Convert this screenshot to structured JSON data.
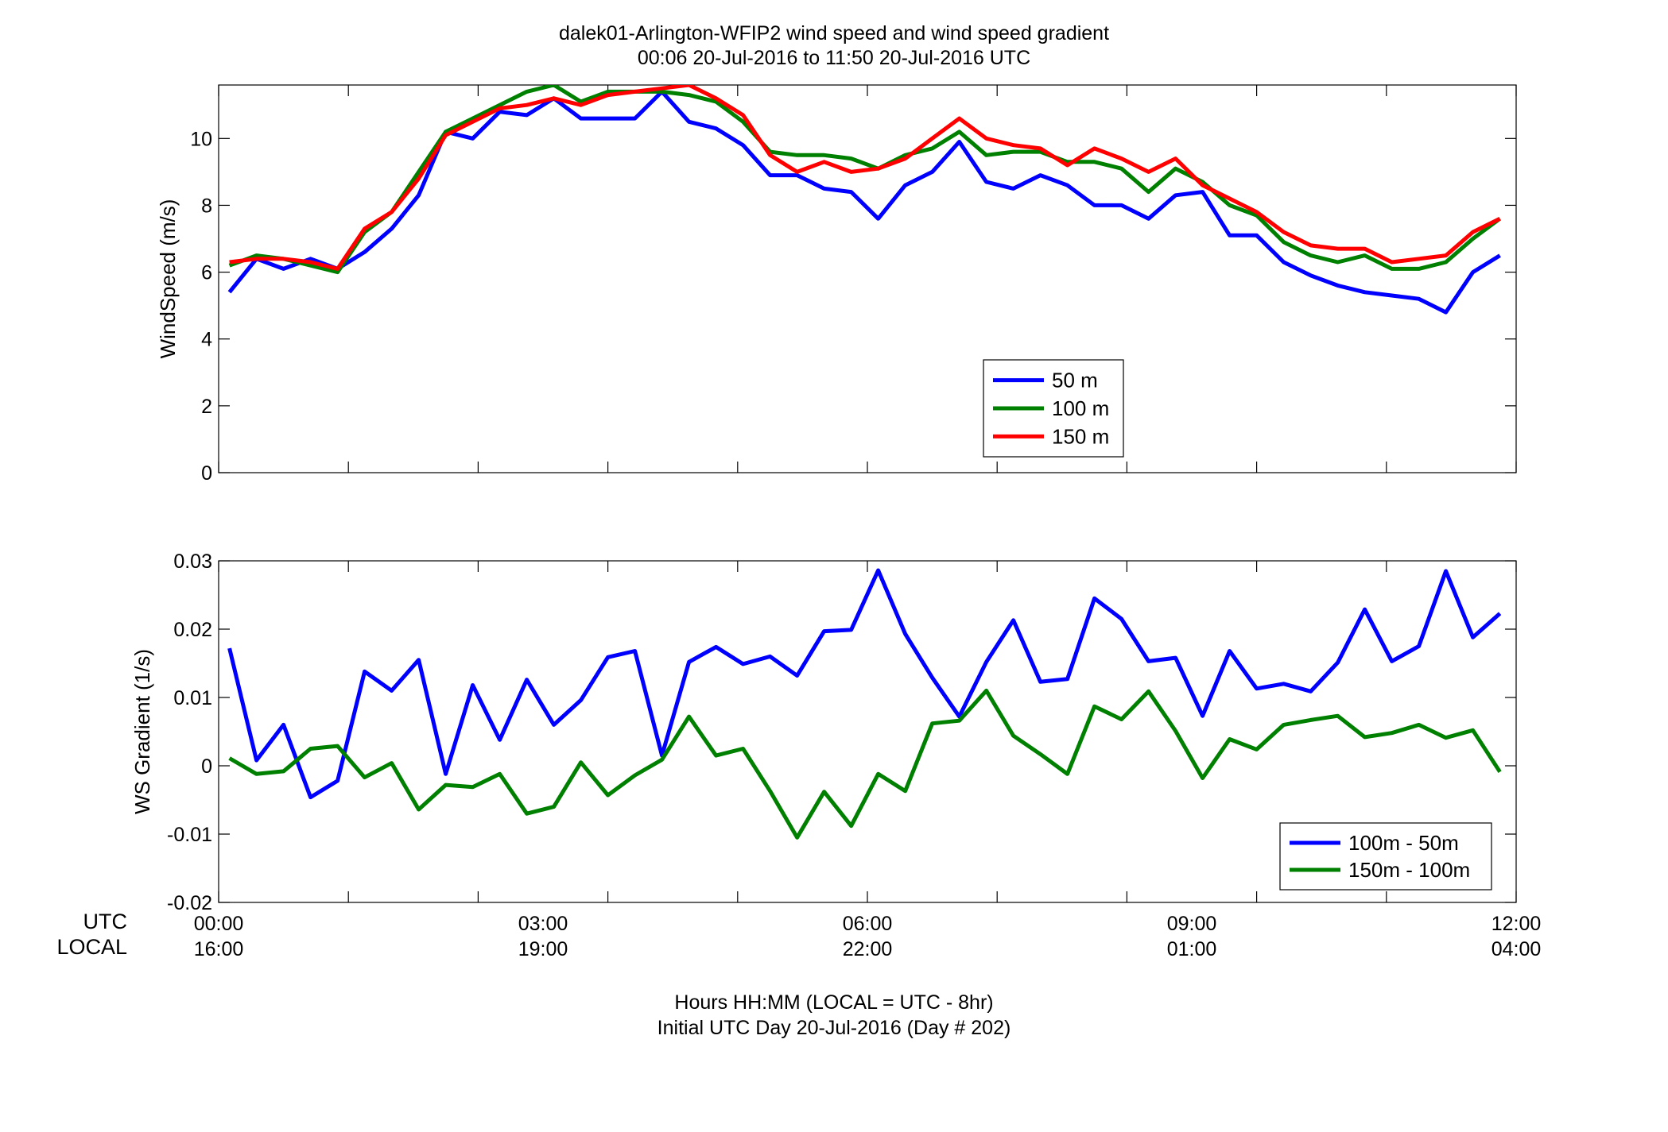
{
  "title": {
    "line1": "dalek01-Arlington-WFIP2  wind speed and wind speed gradient",
    "line2": "00:06 20-Jul-2016 to 11:50 20-Jul-2016  UTC"
  },
  "xaxis": {
    "row_label_utc": "UTC",
    "row_label_local": "LOCAL",
    "utc_ticks": [
      "00:00",
      "03:00",
      "06:00",
      "09:00",
      "12:00"
    ],
    "local_ticks": [
      "16:00",
      "19:00",
      "22:00",
      "01:00",
      "04:00"
    ],
    "label_line1": "Hours HH:MM  (LOCAL = UTC - 8hr)",
    "label_line2": "Initial UTC Day 20-Jul-2016 (Day # 202)"
  },
  "colors": {
    "blue": "#0000ff",
    "green": "#008000",
    "red": "#ff0000"
  },
  "chart_data": [
    {
      "type": "line",
      "ylabel": "WindSpeed (m/s)",
      "xlim": [
        0,
        12
      ],
      "ylim": [
        0,
        11.6
      ],
      "yticks": [
        0,
        2,
        4,
        6,
        8,
        10
      ],
      "x_minor_ticks": [
        0,
        1.2,
        2.4,
        3.6,
        4.8,
        6,
        7.2,
        8.4,
        9.6,
        10.8,
        12
      ],
      "legend_position": "lower-right",
      "x": [
        0.1,
        0.35,
        0.6,
        0.85,
        1.1,
        1.35,
        1.6,
        1.85,
        2.1,
        2.35,
        2.6,
        2.85,
        3.1,
        3.35,
        3.6,
        3.85,
        4.1,
        4.35,
        4.6,
        4.85,
        5.1,
        5.35,
        5.6,
        5.85,
        6.1,
        6.35,
        6.6,
        6.85,
        7.1,
        7.35,
        7.6,
        7.85,
        8.1,
        8.35,
        8.6,
        8.85,
        9.1,
        9.35,
        9.6,
        9.85,
        10.1,
        10.35,
        10.6,
        10.85,
        11.1,
        11.35,
        11.6,
        11.85
      ],
      "series": [
        {
          "name": "50 m",
          "color": "#0000ff",
          "values": [
            5.4,
            6.4,
            6.1,
            6.4,
            6.1,
            6.6,
            7.3,
            8.3,
            10.2,
            10.0,
            10.8,
            10.7,
            11.2,
            10.6,
            10.6,
            10.6,
            11.4,
            10.5,
            10.3,
            9.8,
            8.9,
            8.9,
            8.5,
            8.4,
            7.6,
            8.6,
            9.0,
            9.9,
            8.7,
            8.5,
            8.9,
            8.6,
            8.0,
            8.0,
            7.6,
            8.3,
            8.4,
            7.1,
            7.1,
            6.3,
            5.9,
            5.6,
            5.4,
            5.3,
            5.2,
            4.8,
            6.0,
            6.5
          ]
        },
        {
          "name": "100 m",
          "color": "#008000",
          "values": [
            6.2,
            6.5,
            6.4,
            6.2,
            6.0,
            7.2,
            7.8,
            9.0,
            10.2,
            10.6,
            11.0,
            11.4,
            11.6,
            11.1,
            11.4,
            11.4,
            11.4,
            11.3,
            11.1,
            10.5,
            9.6,
            9.5,
            9.5,
            9.4,
            9.1,
            9.5,
            9.7,
            10.2,
            9.5,
            9.6,
            9.6,
            9.3,
            9.3,
            9.1,
            8.4,
            9.1,
            8.7,
            8.0,
            7.7,
            6.9,
            6.5,
            6.3,
            6.5,
            6.1,
            6.1,
            6.3,
            7.0,
            7.6
          ]
        },
        {
          "name": "150 m",
          "color": "#ff0000",
          "values": [
            6.3,
            6.4,
            6.4,
            6.3,
            6.1,
            7.3,
            7.8,
            8.8,
            10.1,
            10.5,
            10.9,
            11.0,
            11.2,
            11.0,
            11.3,
            11.4,
            11.5,
            11.6,
            11.2,
            10.7,
            9.5,
            9.0,
            9.3,
            9.0,
            9.1,
            9.4,
            10.0,
            10.6,
            10.0,
            9.8,
            9.7,
            9.2,
            9.7,
            9.4,
            9.0,
            9.4,
            8.6,
            8.2,
            7.8,
            7.2,
            6.8,
            6.7,
            6.7,
            6.3,
            6.4,
            6.5,
            7.2,
            7.6
          ]
        }
      ]
    },
    {
      "type": "line",
      "ylabel": "WS Gradient (1/s)",
      "xlim": [
        0,
        12
      ],
      "ylim": [
        -0.02,
        0.03
      ],
      "yticks": [
        -0.02,
        -0.01,
        0,
        0.01,
        0.02,
        0.03
      ],
      "ytick_labels": [
        "-0.02",
        "-0.01",
        "0",
        "0.01",
        "0.02",
        "0.03"
      ],
      "legend_position": "lower-right",
      "x": [
        0.1,
        0.35,
        0.6,
        0.85,
        1.1,
        1.35,
        1.6,
        1.85,
        2.1,
        2.35,
        2.6,
        2.85,
        3.1,
        3.35,
        3.6,
        3.85,
        4.1,
        4.35,
        4.6,
        4.85,
        5.1,
        5.35,
        5.6,
        5.85,
        6.1,
        6.35,
        6.6,
        6.85,
        7.1,
        7.35,
        7.6,
        7.85,
        8.1,
        8.35,
        8.6,
        8.85,
        9.1,
        9.35,
        9.6,
        9.85,
        10.1,
        10.35,
        10.6,
        10.85,
        11.1,
        11.35,
        11.6,
        11.85
      ],
      "series": [
        {
          "name": "100m - 50m",
          "color": "#0000ff",
          "values": [
            0.0172,
            0.0008,
            0.006,
            -0.0046,
            -0.0022,
            0.0138,
            0.011,
            0.0155,
            -0.0012,
            0.0118,
            0.0038,
            0.0126,
            0.006,
            0.0096,
            0.0159,
            0.0168,
            0.0015,
            0.0152,
            0.0174,
            0.0149,
            0.016,
            0.0132,
            0.0197,
            0.0199,
            0.0286,
            0.0193,
            0.0129,
            0.0072,
            0.0152,
            0.0213,
            0.0123,
            0.0127,
            0.0245,
            0.0215,
            0.0153,
            0.0158,
            0.0073,
            0.0168,
            0.0113,
            0.012,
            0.0109,
            0.0151,
            0.0229,
            0.0153,
            0.0175,
            0.0285,
            0.0188,
            0.0223
          ]
        },
        {
          "name": "150m - 100m",
          "color": "#008000",
          "values": [
            0.0011,
            -0.0012,
            -0.0008,
            0.0025,
            0.0029,
            -0.0017,
            0.0004,
            -0.0064,
            -0.0028,
            -0.0031,
            -0.0012,
            -0.007,
            -0.006,
            0.0005,
            -0.0043,
            -0.0014,
            0.0009,
            0.0072,
            0.0015,
            0.0025,
            -0.0037,
            -0.0105,
            -0.0038,
            -0.0088,
            -0.0012,
            -0.0037,
            0.0062,
            0.0066,
            0.011,
            0.0044,
            0.0017,
            -0.0012,
            0.0087,
            0.0068,
            0.0109,
            0.0051,
            -0.0018,
            0.0039,
            0.0024,
            0.006,
            0.0067,
            0.0073,
            0.0042,
            0.0048,
            0.006,
            0.0041,
            0.0052,
            -0.0009
          ]
        }
      ]
    }
  ]
}
